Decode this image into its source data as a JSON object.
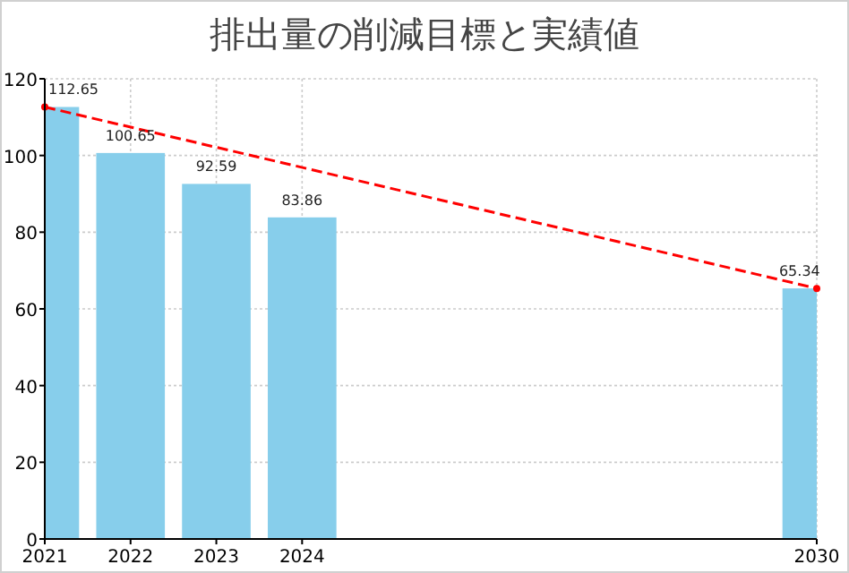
{
  "chart_data": {
    "type": "bar",
    "title": "排出量の削減目標と実績値",
    "x": [
      2021,
      2022,
      2023,
      2024,
      2030
    ],
    "series": [
      {
        "color": "#87ceeb",
        "values": [
          112.65,
          100.65,
          92.59,
          83.86,
          65.34
        ],
        "value_labels": [
          "112.65",
          "100.65",
          "92.59",
          "83.86",
          "65.34"
        ]
      },
      {
        "type": "line",
        "x": [
          2021,
          2030
        ],
        "values": [
          112.65,
          65.34
        ],
        "color": "#ff0000",
        "line_style": "dashed",
        "marker": "circle"
      }
    ],
    "xlim": [
      2021,
      2030
    ],
    "xticks": [
      2021,
      2022,
      2023,
      2024,
      2030
    ],
    "ylim": [
      0,
      120
    ],
    "yticks": [
      0,
      20,
      40,
      60,
      80,
      100,
      120
    ],
    "grid": true
  }
}
